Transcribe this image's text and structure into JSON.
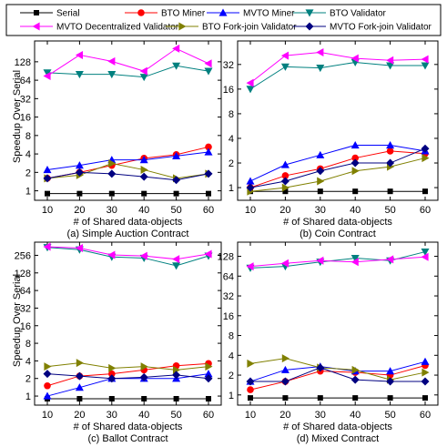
{
  "figure": {
    "ylabel_shared": "Speedup Over Serial"
  },
  "legend": [
    {
      "name": "Serial",
      "color": "#000000",
      "marker": "square"
    },
    {
      "name": "BTO Miner",
      "color": "#ff0000",
      "marker": "circle"
    },
    {
      "name": "MVTO Miner",
      "color": "#0000ff",
      "marker": "triangle-up"
    },
    {
      "name": "BTO Validator",
      "color": "#00807f",
      "marker": "triangle-down"
    },
    {
      "name": "MVTO Decentralized Validator",
      "color": "#ff00ff",
      "marker": "triangle-left"
    },
    {
      "name": "BTO Fork-join Validator",
      "color": "#808000",
      "marker": "triangle-right"
    },
    {
      "name": "MVTO Fork-join Validator",
      "color": "#000080",
      "marker": "diamond"
    }
  ],
  "chart_data": [
    {
      "type": "line",
      "caption": "(a) Simple Auction Contract",
      "xlabel": "# of Shared data-objects",
      "ylabel": "Speedup Over Serial",
      "yscale": "log2",
      "x": [
        10,
        20,
        30,
        40,
        50,
        60
      ],
      "xticks": [
        10,
        20,
        30,
        40,
        50,
        60
      ],
      "ylim": [
        0.7,
        280
      ],
      "yticks": [
        1,
        2,
        4,
        8,
        16,
        32,
        64,
        128
      ],
      "series": [
        {
          "name": "Serial",
          "values": [
            0.9,
            0.9,
            0.9,
            0.9,
            0.9,
            0.9
          ]
        },
        {
          "name": "BTO Miner",
          "values": [
            1.6,
            2.0,
            2.6,
            3.4,
            3.9,
            5.2
          ]
        },
        {
          "name": "MVTO Miner",
          "values": [
            2.2,
            2.6,
            3.2,
            3.2,
            3.7,
            4.3
          ]
        },
        {
          "name": "BTO Validator",
          "values": [
            85,
            80,
            80,
            72,
            110,
            90
          ]
        },
        {
          "name": "MVTO Decentralized Validator",
          "values": [
            75,
            165,
            130,
            90,
            210,
            120
          ]
        },
        {
          "name": "BTO Fork-join Validator",
          "values": [
            1.6,
            1.8,
            2.8,
            2.2,
            1.6,
            1.9
          ]
        },
        {
          "name": "MVTO Fork-join Validator",
          "values": [
            1.6,
            2.0,
            1.9,
            1.7,
            1.5,
            1.9
          ]
        }
      ]
    },
    {
      "type": "line",
      "caption": "(b) Coin Contract",
      "xlabel": "# of Shared data-objects",
      "ylabel": "",
      "yscale": "log2",
      "x": [
        10,
        20,
        30,
        40,
        50,
        60
      ],
      "xticks": [
        10,
        20,
        30,
        40,
        50,
        60
      ],
      "ylim": [
        0.7,
        62
      ],
      "yticks": [
        1,
        2,
        4,
        8,
        16,
        32
      ],
      "series": [
        {
          "name": "Serial",
          "values": [
            0.9,
            0.9,
            0.9,
            0.9,
            0.9,
            0.9
          ]
        },
        {
          "name": "BTO Miner",
          "values": [
            1.0,
            1.4,
            1.7,
            2.3,
            2.8,
            2.6
          ]
        },
        {
          "name": "MVTO Miner",
          "values": [
            1.2,
            1.9,
            2.5,
            3.3,
            3.3,
            2.8
          ]
        },
        {
          "name": "BTO Validator",
          "values": [
            16,
            30,
            29,
            34,
            31,
            31
          ]
        },
        {
          "name": "MVTO Decentralized Validator",
          "values": [
            19,
            41,
            45,
            38,
            36,
            37
          ]
        },
        {
          "name": "BTO Fork-join Validator",
          "values": [
            0.9,
            1.0,
            1.2,
            1.6,
            1.8,
            2.3
          ]
        },
        {
          "name": "MVTO Fork-join Validator",
          "values": [
            1.0,
            1.2,
            1.6,
            2.0,
            2.0,
            3.0
          ]
        }
      ]
    },
    {
      "type": "line",
      "caption": "(c) Ballot Contract",
      "xlabel": "# of Shared data-objects",
      "ylabel": "Speedup Over Serial",
      "yscale": "log2",
      "x": [
        10,
        20,
        30,
        40,
        50,
        60
      ],
      "xticks": [
        10,
        20,
        30,
        40,
        50,
        60
      ],
      "ylim": [
        0.7,
        430
      ],
      "yticks": [
        1,
        2,
        4,
        8,
        16,
        32,
        64,
        128,
        256
      ],
      "series": [
        {
          "name": "Serial",
          "values": [
            0.9,
            0.9,
            0.9,
            0.9,
            0.9,
            0.9
          ]
        },
        {
          "name": "BTO Miner",
          "values": [
            1.5,
            2.2,
            2.4,
            2.8,
            3.3,
            3.6
          ]
        },
        {
          "name": "MVTO Miner",
          "values": [
            1.0,
            1.4,
            2.0,
            2.0,
            2.0,
            2.4
          ]
        },
        {
          "name": "BTO Validator",
          "values": [
            350,
            320,
            240,
            230,
            170,
            250
          ]
        },
        {
          "name": "MVTO Decentralized Validator",
          "values": [
            360,
            340,
            260,
            250,
            220,
            270
          ]
        },
        {
          "name": "BTO Fork-join Validator",
          "values": [
            3.2,
            3.7,
            3.0,
            3.2,
            2.8,
            3.2
          ]
        },
        {
          "name": "MVTO Fork-join Validator",
          "values": [
            2.4,
            2.2,
            2.0,
            2.1,
            2.3,
            2.0
          ]
        }
      ]
    },
    {
      "type": "line",
      "caption": "(d) Mixed Contract",
      "xlabel": "# of Shared data-objects",
      "ylabel": "",
      "yscale": "log2",
      "x": [
        10,
        20,
        30,
        40,
        50,
        60
      ],
      "xticks": [
        10,
        20,
        30,
        40,
        50,
        60
      ],
      "ylim": [
        0.7,
        210
      ],
      "yticks": [
        1,
        2,
        4,
        8,
        16,
        32,
        64,
        128
      ],
      "series": [
        {
          "name": "Serial",
          "values": [
            0.9,
            0.9,
            0.9,
            0.9,
            0.9,
            0.9
          ]
        },
        {
          "name": "BTO Miner",
          "values": [
            1.2,
            1.6,
            2.3,
            2.2,
            2.0,
            2.8
          ]
        },
        {
          "name": "MVTO Miner",
          "values": [
            1.6,
            2.4,
            2.7,
            2.3,
            2.3,
            3.2
          ]
        },
        {
          "name": "BTO Validator",
          "values": [
            85,
            90,
            105,
            120,
            110,
            150
          ]
        },
        {
          "name": "MVTO Decentralized Validator",
          "values": [
            90,
            100,
            110,
            105,
            115,
            125
          ]
        },
        {
          "name": "BTO Fork-join Validator",
          "values": [
            3.0,
            3.6,
            2.6,
            2.4,
            1.7,
            2.2
          ]
        },
        {
          "name": "MVTO Fork-join Validator",
          "values": [
            1.6,
            1.6,
            2.6,
            1.7,
            1.6,
            1.6
          ]
        }
      ]
    }
  ]
}
